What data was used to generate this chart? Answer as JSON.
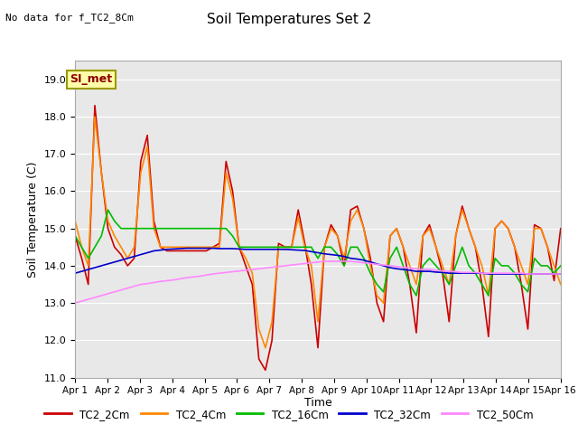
{
  "title": "Soil Temperatures Set 2",
  "subtitle": "No data for f_TC2_8Cm",
  "ylabel": "Soil Temperature (C)",
  "xlabel": "Time",
  "ylim": [
    11.0,
    19.5
  ],
  "yticks": [
    11.0,
    12.0,
    13.0,
    14.0,
    15.0,
    16.0,
    17.0,
    18.0,
    19.0
  ],
  "xtick_labels": [
    "Apr 1",
    "Apr 2",
    "Apr 3",
    "Apr 4",
    "Apr 5",
    "Apr 6",
    "Apr 7",
    "Apr 8",
    "Apr 9",
    "Apr 10",
    "Apr 11",
    "Apr 12",
    "Apr 13",
    "Apr 14",
    "Apr 15",
    "Apr 16"
  ],
  "annotation_text": "SI_met",
  "bg_color": "#e8e8e8",
  "series_colors": {
    "TC2_2Cm": "#cc0000",
    "TC2_4Cm": "#ff8800",
    "TC2_16Cm": "#00bb00",
    "TC2_32Cm": "#0000cc",
    "TC2_50Cm": "#ff88ff"
  },
  "TC2_2Cm": [
    14.8,
    14.2,
    13.5,
    18.3,
    16.5,
    15.0,
    14.5,
    14.3,
    14.0,
    14.2,
    16.8,
    17.5,
    15.2,
    14.5,
    14.4,
    14.4,
    14.4,
    14.4,
    14.4,
    14.4,
    14.4,
    14.5,
    14.6,
    16.8,
    16.0,
    14.5,
    14.0,
    13.5,
    11.5,
    11.2,
    12.0,
    14.6,
    14.5,
    14.5,
    15.5,
    14.6,
    13.5,
    11.8,
    14.5,
    15.1,
    14.8,
    14.0,
    15.5,
    15.6,
    15.0,
    14.2,
    13.0,
    12.5,
    14.8,
    15.0,
    14.5,
    13.5,
    12.2,
    14.8,
    15.1,
    14.5,
    13.8,
    12.5,
    14.8,
    15.6,
    15.0,
    14.5,
    13.5,
    12.1,
    15.0,
    15.2,
    15.0,
    14.5,
    13.5,
    12.3,
    15.1,
    15.0,
    14.5,
    13.6,
    15.0
  ],
  "TC2_4Cm": [
    15.2,
    14.5,
    14.0,
    18.0,
    16.5,
    15.2,
    14.8,
    14.5,
    14.2,
    14.5,
    16.5,
    17.2,
    15.0,
    14.5,
    14.5,
    14.5,
    14.5,
    14.5,
    14.5,
    14.5,
    14.5,
    14.5,
    14.5,
    16.5,
    15.8,
    14.5,
    14.2,
    13.8,
    12.3,
    11.8,
    12.5,
    14.5,
    14.5,
    14.5,
    15.3,
    14.5,
    14.0,
    12.5,
    14.5,
    15.0,
    14.8,
    14.2,
    15.2,
    15.5,
    15.0,
    14.0,
    13.2,
    13.0,
    14.8,
    15.0,
    14.5,
    14.0,
    13.5,
    14.8,
    15.0,
    14.5,
    14.0,
    13.5,
    14.8,
    15.5,
    15.0,
    14.5,
    14.0,
    13.2,
    15.0,
    15.2,
    15.0,
    14.5,
    14.0,
    13.5,
    15.0,
    15.0,
    14.5,
    14.0,
    13.5
  ],
  "TC2_16Cm": [
    14.8,
    14.5,
    14.2,
    14.5,
    14.8,
    15.5,
    15.2,
    15.0,
    15.0,
    15.0,
    15.0,
    15.0,
    15.0,
    15.0,
    15.0,
    15.0,
    15.0,
    15.0,
    15.0,
    15.0,
    15.0,
    15.0,
    15.0,
    15.0,
    14.8,
    14.5,
    14.5,
    14.5,
    14.5,
    14.5,
    14.5,
    14.5,
    14.5,
    14.5,
    14.5,
    14.5,
    14.5,
    14.2,
    14.5,
    14.5,
    14.3,
    14.0,
    14.5,
    14.5,
    14.2,
    13.8,
    13.5,
    13.3,
    14.2,
    14.5,
    14.0,
    13.5,
    13.2,
    14.0,
    14.2,
    14.0,
    13.8,
    13.5,
    14.0,
    14.5,
    14.0,
    13.8,
    13.5,
    13.2,
    14.2,
    14.0,
    14.0,
    13.8,
    13.5,
    13.3,
    14.2,
    14.0,
    14.0,
    13.8,
    14.0
  ],
  "TC2_32Cm": [
    13.8,
    13.85,
    13.9,
    13.95,
    14.0,
    14.05,
    14.1,
    14.15,
    14.2,
    14.25,
    14.3,
    14.35,
    14.4,
    14.42,
    14.44,
    14.45,
    14.46,
    14.47,
    14.47,
    14.47,
    14.47,
    14.47,
    14.46,
    14.46,
    14.46,
    14.45,
    14.44,
    14.44,
    14.44,
    14.44,
    14.44,
    14.44,
    14.44,
    14.43,
    14.42,
    14.41,
    14.38,
    14.35,
    14.32,
    14.3,
    14.28,
    14.25,
    14.2,
    14.18,
    14.15,
    14.1,
    14.05,
    14.0,
    13.95,
    13.92,
    13.9,
    13.88,
    13.85,
    13.85,
    13.85,
    13.83,
    13.82,
    13.8,
    13.8,
    13.8,
    13.8,
    13.8,
    13.8,
    13.78,
    13.78,
    13.78,
    13.78,
    13.78,
    13.78,
    13.78,
    13.78,
    13.78,
    13.78,
    13.78,
    13.78
  ],
  "TC2_50Cm": [
    13.0,
    13.05,
    13.1,
    13.15,
    13.2,
    13.25,
    13.3,
    13.35,
    13.4,
    13.45,
    13.5,
    13.52,
    13.55,
    13.58,
    13.6,
    13.62,
    13.65,
    13.68,
    13.7,
    13.72,
    13.75,
    13.78,
    13.8,
    13.82,
    13.84,
    13.86,
    13.88,
    13.9,
    13.92,
    13.94,
    13.96,
    13.98,
    14.0,
    14.02,
    14.04,
    14.06,
    14.08,
    14.1,
    14.12,
    14.12,
    14.12,
    14.12,
    14.12,
    14.1,
    14.08,
    14.06,
    14.04,
    14.02,
    14.0,
    13.98,
    13.96,
    13.94,
    13.92,
    13.9,
    13.9,
    13.88,
    13.86,
    13.85,
    13.84,
    13.82,
    13.82,
    13.82,
    13.8,
    13.8,
    13.8,
    13.8,
    13.8,
    13.8,
    13.8,
    13.78,
    13.78,
    13.78,
    13.78,
    13.78,
    13.78
  ]
}
